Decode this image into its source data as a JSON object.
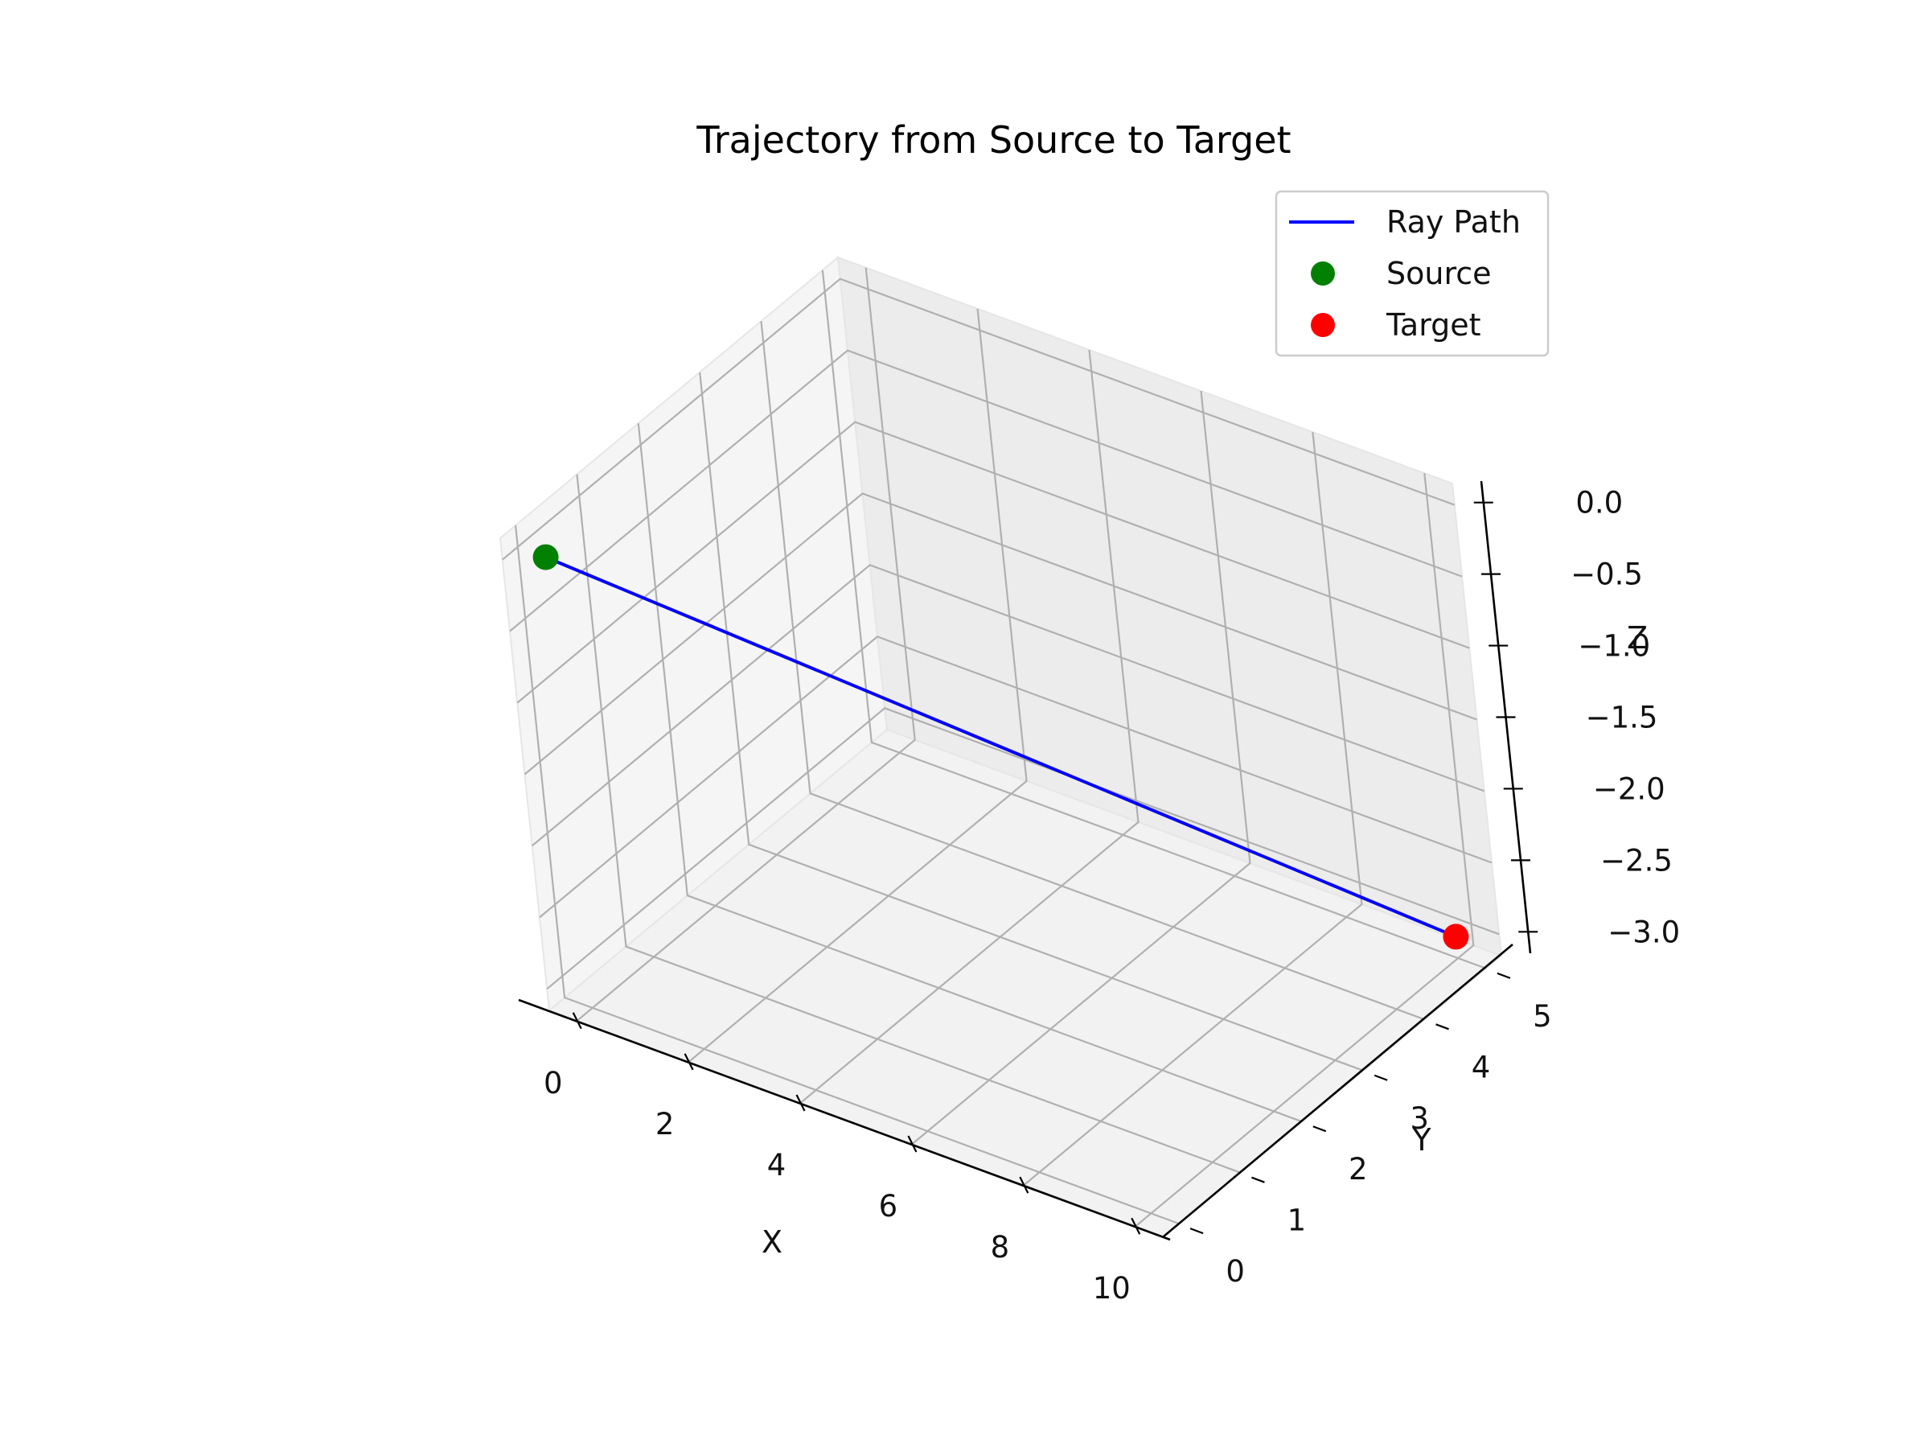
{
  "chart_data": {
    "type": "line3d",
    "title": "Trajectory from Source to Target",
    "xlabel": "X",
    "ylabel": "Y",
    "zlabel": "Z",
    "xlim": [
      -0.5,
      10.5
    ],
    "ylim": [
      -0.25,
      5.25
    ],
    "zlim": [
      -3.15,
      0.15
    ],
    "x_ticks": [
      0,
      2,
      4,
      6,
      8,
      10
    ],
    "y_ticks": [
      0,
      1,
      2,
      3,
      4,
      5
    ],
    "z_ticks": [
      0.0,
      -0.5,
      -1.0,
      -1.5,
      -2.0,
      -2.5,
      -3.0
    ],
    "x_tick_labels": [
      "0",
      "2",
      "4",
      "6",
      "8",
      "10"
    ],
    "y_tick_labels": [
      "0",
      "1",
      "2",
      "3",
      "4",
      "5"
    ],
    "z_tick_labels": [
      "0.0",
      "−0.5",
      "−1.0",
      "−1.5",
      "−2.0",
      "−2.5",
      "−3.0"
    ],
    "grid": true,
    "legend": {
      "position": "top-right",
      "entries": [
        "Ray Path",
        "Source",
        "Target"
      ]
    },
    "series": [
      {
        "name": "Ray Path",
        "kind": "line",
        "color": "#0000ff",
        "points": [
          [
            0,
            0,
            0
          ],
          [
            10,
            5,
            -3
          ]
        ]
      },
      {
        "name": "Source",
        "kind": "scatter",
        "color": "#008000",
        "points": [
          [
            0,
            0,
            0
          ]
        ]
      },
      {
        "name": "Target",
        "kind": "scatter",
        "color": "#ff0000",
        "points": [
          [
            10,
            5,
            -3
          ]
        ]
      }
    ]
  }
}
